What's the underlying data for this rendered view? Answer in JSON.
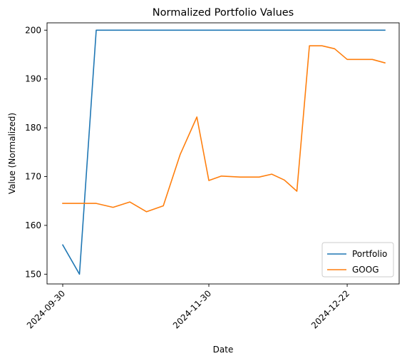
{
  "chart_data": {
    "type": "line",
    "title": "Normalized Portfolio Values",
    "xlabel": "Date",
    "ylabel": "Value (Normalized)",
    "x": [
      "2024-09-30",
      "2024-10-07",
      "2024-10-14",
      "2024-10-21",
      "2024-10-28",
      "2024-11-04",
      "2024-11-11",
      "2024-11-18",
      "2024-11-25",
      "2024-11-30",
      "2024-12-02",
      "2024-12-05",
      "2024-12-08",
      "2024-12-10",
      "2024-12-12",
      "2024-12-14",
      "2024-12-16",
      "2024-12-18",
      "2024-12-20",
      "2024-12-22",
      "2024-12-24",
      "2024-12-26",
      "2024-12-28"
    ],
    "xlim": [
      "2024-09-30",
      "2024-12-28"
    ],
    "xticks": [
      "2024-09-30",
      "2024-11-30",
      "2024-12-22"
    ],
    "ylim": [
      148,
      201.5
    ],
    "yticks": [
      150,
      160,
      170,
      180,
      190,
      200
    ],
    "series": [
      {
        "name": "Portfolio",
        "color": "#1f77b4",
        "values": [
          156,
          150,
          200,
          200,
          200,
          200,
          200,
          200,
          200,
          200,
          200,
          200,
          200,
          200,
          200,
          200,
          200,
          200,
          200,
          200,
          200,
          200,
          200
        ]
      },
      {
        "name": "GOOG",
        "color": "#ff7f0e",
        "values": [
          164.5,
          164.5,
          164.5,
          163.7,
          164.8,
          162.8,
          164.0,
          174.5,
          182.2,
          169.2,
          170.1,
          169.9,
          169.9,
          170.5,
          169.3,
          167.0,
          196.8,
          196.8,
          196.2,
          194.0,
          194.0,
          194.0,
          193.3
        ]
      }
    ],
    "legend": "lower-right",
    "grid": false
  }
}
